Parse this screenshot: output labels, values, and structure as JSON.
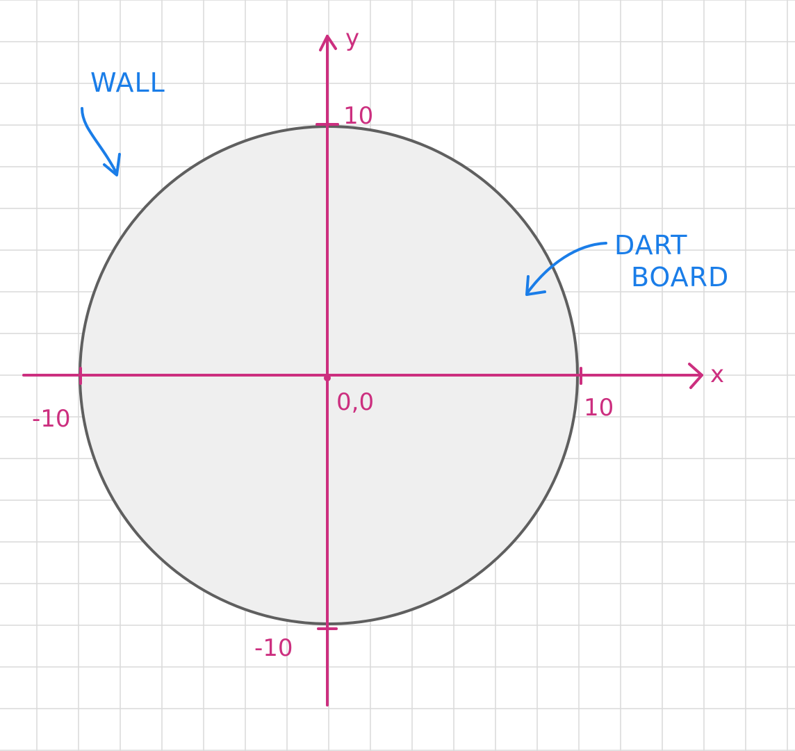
{
  "colors": {
    "grid": "#d9d9d9",
    "axis": "#cc2f7f",
    "board_fill": "#efefef",
    "board_stroke": "#5f5f5f",
    "annotation": "#1a7de8"
  },
  "diagram": {
    "axes": {
      "x_label": "x",
      "y_label": "y",
      "origin_label": "0,0",
      "x_min_label": "-10",
      "x_max_label": "10",
      "y_min_label": "-10",
      "y_max_label": "10"
    },
    "board": {
      "label_line1": "DART",
      "label_line2": "BOARD",
      "radius": 10
    },
    "wall": {
      "label": "WALL"
    }
  }
}
